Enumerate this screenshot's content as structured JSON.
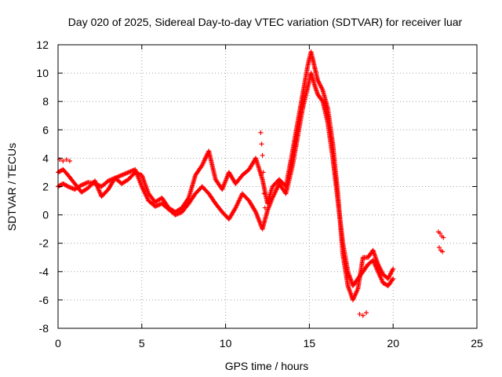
{
  "chart_data": {
    "type": "scatter",
    "title": "Day 020 of 2025, Sidereal Day-to-day VTEC variation (SDTVAR) for receiver luar",
    "xlabel": "GPS time / hours",
    "ylabel": "SDTVAR / TECUs",
    "xlim": [
      0,
      25
    ],
    "ylim": [
      -8,
      12
    ],
    "xticks": [
      "0",
      "5",
      "10",
      "15",
      "20",
      "25"
    ],
    "yticks": [
      "-8",
      "-6",
      "-4",
      "-2",
      "0",
      "2",
      "4",
      "6",
      "8",
      "10",
      "12"
    ],
    "grid": true,
    "marker": "plus",
    "color": "#ff0000",
    "series": [
      {
        "name": "track-a",
        "x": [
          0.0,
          0.3,
          0.6,
          1.0,
          1.4,
          1.8,
          2.2,
          2.6,
          3.0,
          3.4,
          3.8,
          4.2,
          4.6,
          5.0,
          5.4,
          5.8,
          6.2,
          6.6,
          7.0,
          7.4,
          7.8,
          8.2,
          8.6,
          9.0,
          9.4,
          9.8,
          10.2,
          10.6,
          11.0,
          11.4,
          11.8,
          12.2,
          12.5,
          12.8,
          13.2,
          13.6,
          14.0,
          14.3,
          14.6,
          14.9,
          15.1,
          15.3,
          15.5,
          15.8,
          16.1,
          16.4,
          16.7,
          17.0,
          17.3,
          17.6,
          17.9,
          18.2,
          18.5,
          18.8,
          19.1,
          19.4,
          19.7,
          20.0
        ],
        "y": [
          2.0,
          2.2,
          2.0,
          1.8,
          2.1,
          2.3,
          2.2,
          2.0,
          2.4,
          2.6,
          2.8,
          3.0,
          3.2,
          2.0,
          1.0,
          0.6,
          0.8,
          0.4,
          0.0,
          0.2,
          0.8,
          1.5,
          2.0,
          1.5,
          0.8,
          0.2,
          -0.3,
          0.5,
          1.5,
          1.0,
          0.2,
          -1.0,
          0.3,
          1.2,
          2.2,
          1.5,
          3.5,
          5.5,
          7.5,
          9.0,
          10.0,
          9.2,
          8.5,
          8.0,
          6.5,
          4.0,
          1.0,
          -2.0,
          -4.0,
          -5.0,
          -4.5,
          -4.0,
          -3.5,
          -3.2,
          -4.0,
          -4.8,
          -5.0,
          -4.5
        ]
      },
      {
        "name": "track-b",
        "x": [
          0.0,
          0.3,
          0.6,
          1.0,
          1.4,
          1.8,
          2.2,
          2.6,
          3.0,
          3.4,
          3.8,
          4.2,
          4.6,
          5.0,
          5.4,
          5.8,
          6.2,
          6.6,
          7.0,
          7.4,
          7.8,
          8.2,
          8.6,
          9.0,
          9.4,
          9.8,
          10.2,
          10.6,
          11.0,
          11.4,
          11.8,
          12.2,
          12.5,
          12.8,
          13.2,
          13.6,
          14.0,
          14.3,
          14.6,
          14.9,
          15.1,
          15.3,
          15.5,
          15.8,
          16.1,
          16.4,
          16.7,
          17.0,
          17.3,
          17.6,
          17.9,
          18.2,
          18.5,
          18.8,
          19.1,
          19.4,
          19.7,
          20.0
        ],
        "y": [
          3.0,
          3.2,
          2.8,
          2.2,
          1.6,
          1.9,
          2.4,
          1.3,
          1.8,
          2.6,
          2.2,
          2.5,
          3.0,
          2.8,
          1.5,
          0.9,
          1.2,
          0.5,
          0.2,
          0.5,
          1.2,
          2.8,
          3.5,
          4.5,
          2.5,
          1.8,
          3.0,
          2.2,
          2.8,
          3.2,
          4.0,
          2.5,
          0.8,
          2.0,
          2.5,
          2.0,
          4.5,
          6.5,
          8.5,
          10.5,
          11.5,
          10.5,
          9.5,
          8.8,
          7.5,
          5.0,
          1.5,
          -2.8,
          -5.0,
          -6.0,
          -5.2,
          -3.0,
          -3.0,
          -2.5,
          -3.5,
          -4.2,
          -4.5,
          -3.8
        ]
      },
      {
        "name": "isolated-points",
        "x": [
          0.1,
          0.3,
          0.5,
          0.7,
          12.1,
          12.15,
          12.2,
          12.25,
          12.3,
          12.35,
          18.0,
          18.2,
          18.4,
          22.7,
          22.8,
          22.9,
          23.0,
          22.75,
          22.85,
          22.95
        ],
        "y": [
          3.9,
          3.8,
          3.9,
          3.8,
          5.8,
          5.0,
          4.2,
          3.0,
          1.5,
          0.5,
          -7.0,
          -7.1,
          -6.9,
          -1.2,
          -1.3,
          -1.5,
          -1.6,
          -2.3,
          -2.5,
          -2.6
        ]
      }
    ]
  }
}
